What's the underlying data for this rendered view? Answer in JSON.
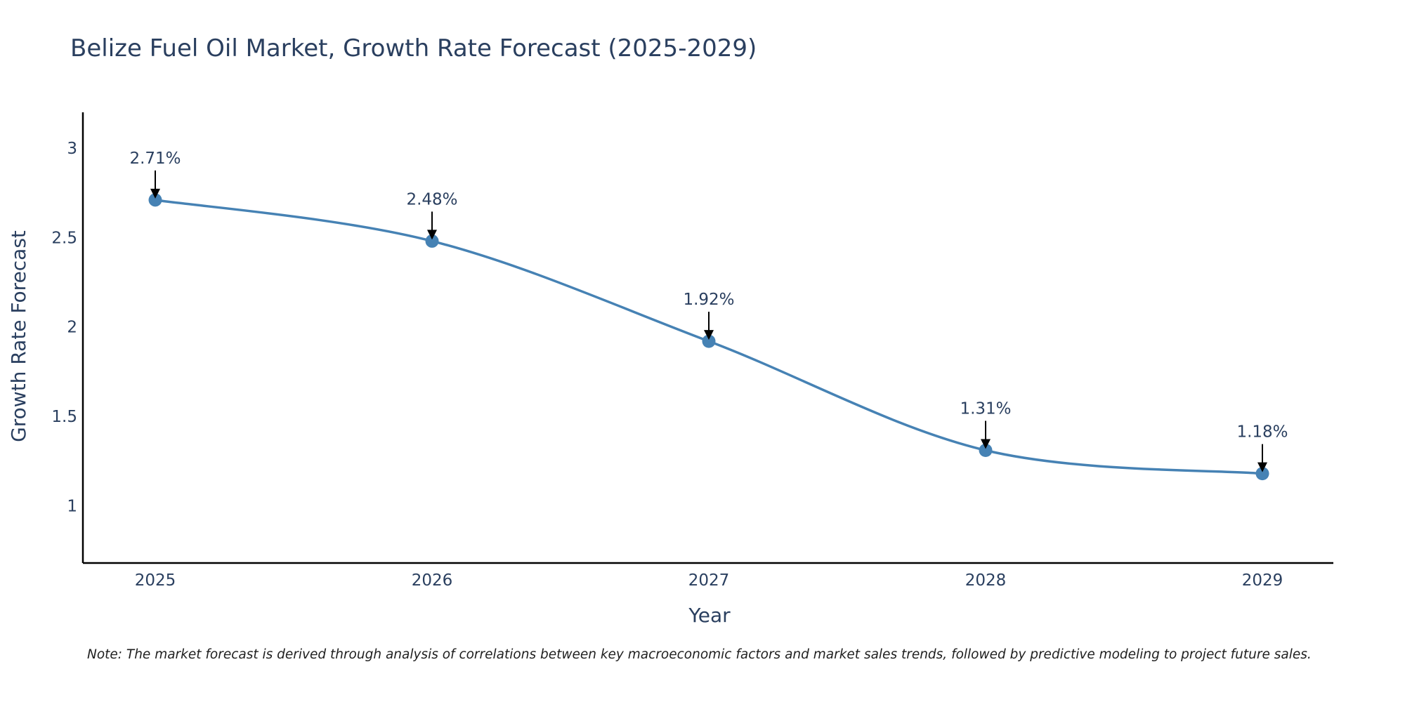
{
  "chart_data": {
    "type": "line",
    "title": "Belize Fuel Oil Market, Growth Rate Forecast (2025-2029)",
    "xlabel": "Year",
    "ylabel": "Growth Rate Forecast",
    "categories": [
      "2025",
      "2026",
      "2027",
      "2028",
      "2029"
    ],
    "series": [
      {
        "name": "Growth Rate Forecast",
        "values": [
          2.71,
          2.48,
          1.92,
          1.31,
          1.18
        ],
        "color": "#4682b4",
        "line_shape": "spline"
      }
    ],
    "data_labels": [
      "2.71%",
      "2.48%",
      "1.92%",
      "1.31%",
      "1.18%"
    ],
    "yticks": [
      1,
      1.5,
      2,
      2.5,
      3
    ],
    "ytick_labels": [
      "1",
      "1.5",
      "2",
      "2.5",
      "3"
    ],
    "ylim": [
      0.68,
      3.2
    ],
    "grid": false,
    "note": "Note: The market forecast is derived through analysis of correlations between key macroeconomic factors and market sales trends, followed by predictive modeling to project future sales."
  },
  "colors": {
    "text": "#2a3f5f",
    "axis": "#000000",
    "line": "#4682b4",
    "arrow": "#000000"
  }
}
